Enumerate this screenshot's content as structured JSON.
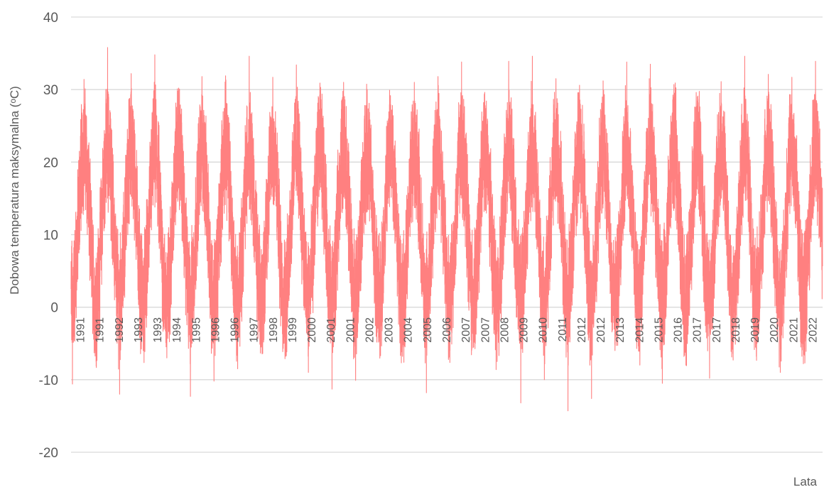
{
  "chart_data": {
    "type": "line",
    "title": "",
    "xlabel": "Lata",
    "ylabel": "Dobowa temperatura maksymalna (ᵒC)",
    "ylim": [
      -20,
      40
    ],
    "yticks": [
      40,
      30,
      20,
      10,
      0,
      -10,
      -20
    ],
    "grid": true,
    "x_tick_labels": [
      "1991",
      "1991",
      "1992",
      "1993",
      "1993",
      "1994",
      "1995",
      "1996",
      "1996",
      "1997",
      "1998",
      "1999",
      "2000",
      "2001",
      "2001",
      "2002",
      "2003",
      "2004",
      "2005",
      "2006",
      "2007",
      "2007",
      "2008",
      "2009",
      "2010",
      "2011",
      "2012",
      "2012",
      "2013",
      "2014",
      "2015",
      "2016",
      "2017",
      "2017",
      "2018",
      "2019",
      "2020",
      "2021",
      "2022"
    ],
    "x_range_years": [
      1991.0,
      2022.85
    ],
    "series": [
      {
        "color": "#FF8080",
        "seasonal_mean_summer": 22,
        "seasonal_mean_winter": 1,
        "summer_peaks": [
          {
            "year": 1991,
            "value": 31.4
          },
          {
            "year": 1992,
            "value": 35.8
          },
          {
            "year": 1993,
            "value": 32.2
          },
          {
            "year": 1994,
            "value": 34.8
          },
          {
            "year": 1995,
            "value": 29.8
          },
          {
            "year": 1996,
            "value": 31.8
          },
          {
            "year": 1997,
            "value": 31.9
          },
          {
            "year": 1998,
            "value": 34.6
          },
          {
            "year": 1999,
            "value": 31.7
          },
          {
            "year": 2000,
            "value": 33.4
          },
          {
            "year": 2001,
            "value": 30.9
          },
          {
            "year": 2002,
            "value": 31.0
          },
          {
            "year": 2003,
            "value": 30.0
          },
          {
            "year": 2004,
            "value": 27.9
          },
          {
            "year": 2005,
            "value": 31.0
          },
          {
            "year": 2006,
            "value": 31.8
          },
          {
            "year": 2007,
            "value": 33.8
          },
          {
            "year": 2008,
            "value": 27.8
          },
          {
            "year": 2009,
            "value": 33.9
          },
          {
            "year": 2010,
            "value": 34.6
          },
          {
            "year": 2011,
            "value": 31.5
          },
          {
            "year": 2012,
            "value": 30.6
          },
          {
            "year": 2013,
            "value": 31.2
          },
          {
            "year": 2014,
            "value": 33.8
          },
          {
            "year": 2015,
            "value": 33.5
          },
          {
            "year": 2016,
            "value": 30.7
          },
          {
            "year": 2017,
            "value": 29.0
          },
          {
            "year": 2018,
            "value": 31.1
          },
          {
            "year": 2019,
            "value": 34.6
          },
          {
            "year": 2020,
            "value": 32.1
          },
          {
            "year": 2021,
            "value": 31.7
          },
          {
            "year": 2022,
            "value": 33.9
          }
        ],
        "winter_minima": [
          {
            "year": 1991,
            "value": -10.6
          },
          {
            "year": 1992,
            "value": -7.5
          },
          {
            "year": 1993,
            "value": -12.0
          },
          {
            "year": 1994,
            "value": -6.0
          },
          {
            "year": 1995,
            "value": -7.0
          },
          {
            "year": 1996,
            "value": -12.3
          },
          {
            "year": 1997,
            "value": -10.2
          },
          {
            "year": 1998,
            "value": -8.5
          },
          {
            "year": 1999,
            "value": -5.5
          },
          {
            "year": 2000,
            "value": -5.0
          },
          {
            "year": 2001,
            "value": -9.0
          },
          {
            "year": 2002,
            "value": -11.3
          },
          {
            "year": 2003,
            "value": -10.1
          },
          {
            "year": 2004,
            "value": -3.2
          },
          {
            "year": 2005,
            "value": -5.5
          },
          {
            "year": 2006,
            "value": -11.8
          },
          {
            "year": 2007,
            "value": -6.0
          },
          {
            "year": 2008,
            "value": -5.5
          },
          {
            "year": 2009,
            "value": -7.5
          },
          {
            "year": 2010,
            "value": -13.2
          },
          {
            "year": 2011,
            "value": -10.0
          },
          {
            "year": 2012,
            "value": -14.3
          },
          {
            "year": 2013,
            "value": -12.6
          },
          {
            "year": 2014,
            "value": -4.0
          },
          {
            "year": 2015,
            "value": -3.0
          },
          {
            "year": 2016,
            "value": -10.5
          },
          {
            "year": 2017,
            "value": -8.0
          },
          {
            "year": 2018,
            "value": -9.8
          },
          {
            "year": 2019,
            "value": -7.3
          },
          {
            "year": 2020,
            "value": -4.0
          },
          {
            "year": 2021,
            "value": -9.0
          },
          {
            "year": 2022,
            "value": -6.5
          }
        ]
      }
    ]
  }
}
